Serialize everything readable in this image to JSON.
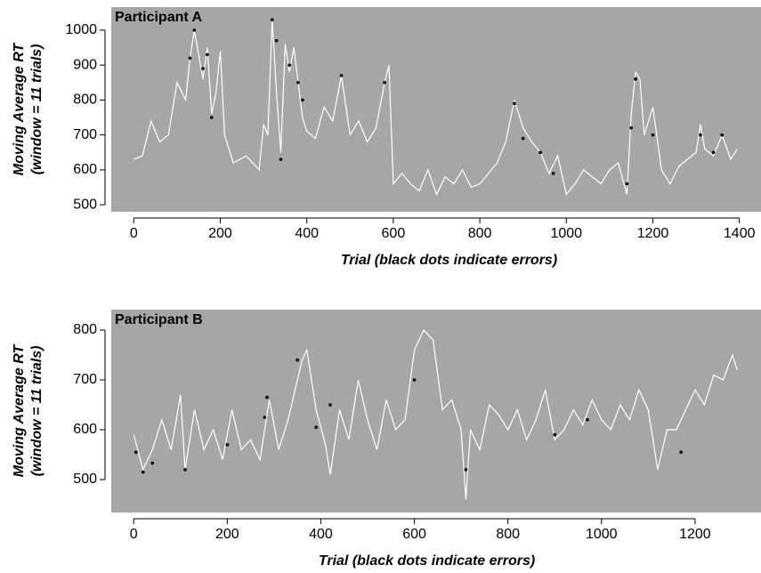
{
  "chart_data": [
    {
      "type": "line",
      "title": "Participant A",
      "ylabel": [
        "Moving Average RT",
        "(window = 11 trials)"
      ],
      "xlabel": "Trial (black dots indicate errors)",
      "xlim": [
        -52,
        1450
      ],
      "ylim": [
        480,
        1066
      ],
      "xticks": [
        0,
        200,
        400,
        600,
        800,
        1000,
        1200,
        1400
      ],
      "yticks": [
        500,
        600,
        700,
        800,
        900,
        1000
      ],
      "background": "#a6a6a6",
      "series": [
        {
          "color": "#ffffff",
          "x": [
            0,
            20,
            40,
            60,
            80,
            100,
            120,
            130,
            140,
            150,
            160,
            170,
            180,
            190,
            200,
            210,
            230,
            260,
            290,
            300,
            310,
            320,
            330,
            340,
            350,
            360,
            370,
            380,
            390,
            400,
            420,
            440,
            460,
            480,
            500,
            520,
            540,
            560,
            580,
            590,
            600,
            620,
            640,
            660,
            680,
            700,
            720,
            740,
            760,
            780,
            800,
            820,
            840,
            860,
            880,
            900,
            920,
            940,
            960,
            980,
            1000,
            1020,
            1040,
            1060,
            1080,
            1100,
            1120,
            1140,
            1150,
            1160,
            1170,
            1180,
            1200,
            1220,
            1240,
            1260,
            1280,
            1300,
            1310,
            1320,
            1340,
            1360,
            1380,
            1395
          ],
          "values": [
            630,
            640,
            740,
            680,
            700,
            850,
            800,
            920,
            1000,
            930,
            860,
            950,
            760,
            820,
            940,
            700,
            620,
            640,
            600,
            730,
            700,
            1030,
            820,
            650,
            960,
            880,
            950,
            850,
            750,
            710,
            690,
            780,
            740,
            870,
            700,
            740,
            680,
            720,
            850,
            900,
            560,
            590,
            560,
            540,
            600,
            530,
            580,
            560,
            600,
            550,
            560,
            590,
            620,
            680,
            800,
            720,
            680,
            650,
            590,
            640,
            530,
            560,
            600,
            580,
            560,
            600,
            620,
            530,
            760,
            880,
            860,
            700,
            780,
            600,
            560,
            610,
            630,
            650,
            730,
            660,
            640,
            700,
            630,
            660
          ]
        }
      ],
      "errors": {
        "color": "#000000",
        "x": [
          130,
          140,
          160,
          170,
          180,
          320,
          330,
          340,
          360,
          380,
          390,
          480,
          580,
          880,
          900,
          940,
          970,
          1140,
          1150,
          1160,
          1200,
          1310,
          1340,
          1360
        ],
        "values": [
          920,
          1000,
          890,
          930,
          750,
          1030,
          970,
          630,
          900,
          850,
          800,
          870,
          850,
          790,
          690,
          650,
          590,
          560,
          720,
          860,
          700,
          700,
          650,
          700
        ]
      }
    },
    {
      "type": "line",
      "title": "Participant B",
      "ylabel": [
        "Moving Average RT",
        "(window = 11 trials)"
      ],
      "xlabel": "Trial (black dots indicate errors)",
      "xlim": [
        -48,
        1341
      ],
      "ylim": [
        434,
        841
      ],
      "xticks": [
        0,
        200,
        400,
        600,
        800,
        1000,
        1200
      ],
      "yticks": [
        500,
        600,
        700,
        800
      ],
      "background": "#a6a6a6",
      "series": [
        {
          "color": "#ffffff",
          "x": [
            0,
            20,
            40,
            60,
            80,
            100,
            110,
            130,
            150,
            170,
            190,
            210,
            230,
            250,
            270,
            290,
            310,
            330,
            350,
            360,
            370,
            390,
            410,
            420,
            440,
            460,
            480,
            500,
            520,
            540,
            560,
            580,
            600,
            620,
            640,
            660,
            680,
            700,
            710,
            720,
            740,
            760,
            780,
            800,
            820,
            840,
            860,
            880,
            900,
            920,
            940,
            960,
            980,
            1000,
            1020,
            1040,
            1060,
            1080,
            1100,
            1120,
            1140,
            1160,
            1180,
            1200,
            1220,
            1240,
            1260,
            1280,
            1290
          ],
          "values": [
            590,
            520,
            560,
            620,
            560,
            670,
            520,
            640,
            560,
            600,
            540,
            640,
            560,
            580,
            540,
            660,
            560,
            620,
            700,
            740,
            760,
            640,
            570,
            510,
            640,
            580,
            700,
            620,
            560,
            660,
            600,
            620,
            760,
            800,
            780,
            640,
            660,
            600,
            460,
            600,
            560,
            650,
            630,
            600,
            640,
            580,
            620,
            680,
            580,
            600,
            640,
            610,
            660,
            620,
            600,
            650,
            620,
            680,
            640,
            520,
            600,
            600,
            640,
            680,
            650,
            710,
            700,
            750,
            720
          ]
        }
      ],
      "errors": {
        "color": "#000000",
        "x": [
          5,
          20,
          40,
          110,
          200,
          280,
          285,
          350,
          390,
          420,
          600,
          710,
          900,
          970,
          1170
        ],
        "values": [
          555,
          515,
          533,
          520,
          570,
          625,
          665,
          740,
          605,
          650,
          700,
          520,
          590,
          620,
          555
        ]
      }
    }
  ]
}
